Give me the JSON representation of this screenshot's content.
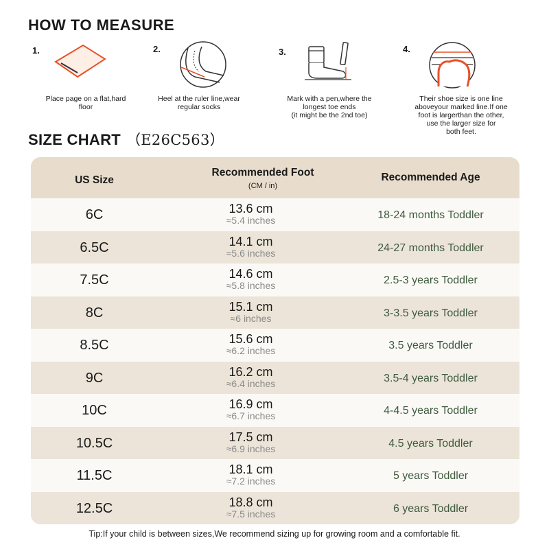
{
  "how_to_measure": {
    "title": "HOW TO MEASURE",
    "steps": [
      {
        "num": "1.",
        "caption_line1": "Place page on a flat,hard",
        "caption_line2": "floor",
        "icon": "paper-icon"
      },
      {
        "num": "2.",
        "caption_line1": "Heel at the ruler line,wear",
        "caption_line2": "regular socks",
        "icon": "heel-ruler-icon"
      },
      {
        "num": "3.",
        "caption_line1": "Mark with a pen,where the",
        "caption_line2": "longest toe ends",
        "caption_line3": "(it might be the 2nd toe)",
        "icon": "sock-pen-icon"
      },
      {
        "num": "4.",
        "caption_line1": "Their shoe size is one line",
        "caption_line2": "aboveyour marked line.If one",
        "caption_line3": "foot is largerthan the other,",
        "caption_line4": "use the larger size for",
        "caption_line5": "both feet.",
        "icon": "toe-line-icon"
      }
    ]
  },
  "size_chart": {
    "title": "SIZE CHART",
    "code": "（E26C563）",
    "headers": {
      "us_size": "US Size",
      "foot": "Recommended Foot",
      "foot_unit": "(CM / in)",
      "age": "Recommended Age"
    },
    "rows": [
      {
        "size": "6C",
        "cm": "13.6 cm",
        "in": "≈5.4 inches",
        "age": "18-24 months Toddler"
      },
      {
        "size": "6.5C",
        "cm": "14.1 cm",
        "in": "≈5.6 inches",
        "age": "24-27 months Toddler"
      },
      {
        "size": "7.5C",
        "cm": "14.6 cm",
        "in": "≈5.8 inches",
        "age": "2.5-3 years Toddler"
      },
      {
        "size": "8C",
        "cm": "15.1 cm",
        "in": "≈6 inches",
        "age": "3-3.5 years Toddler"
      },
      {
        "size": "8.5C",
        "cm": "15.6 cm",
        "in": "≈6.2 inches",
        "age": "3.5 years Toddler"
      },
      {
        "size": "9C",
        "cm": "16.2 cm",
        "in": "≈6.4 inches",
        "age": "3.5-4 years Toddler"
      },
      {
        "size": "10C",
        "cm": "16.9 cm",
        "in": "≈6.7 inches",
        "age": "4-4.5 years Toddler"
      },
      {
        "size": "10.5C",
        "cm": "17.5 cm",
        "in": "≈6.9 inches",
        "age": "4.5 years Toddler"
      },
      {
        "size": "11.5C",
        "cm": "18.1 cm",
        "in": "≈7.2 inches",
        "age": "5 years Toddler"
      },
      {
        "size": "12.5C",
        "cm": "18.8 cm",
        "in": "≈7.5 inches",
        "age": "6 years Toddler"
      }
    ]
  },
  "tip": "Tip:If your child is between sizes,We recommend sizing up for growing room and a comfortable fit.",
  "colors": {
    "accent": "#e8512a",
    "header_bg": "#e8ddcd",
    "row_light": "#fbf9f6",
    "row_dark": "#ece4d8",
    "age_text": "#3d5a3d"
  }
}
